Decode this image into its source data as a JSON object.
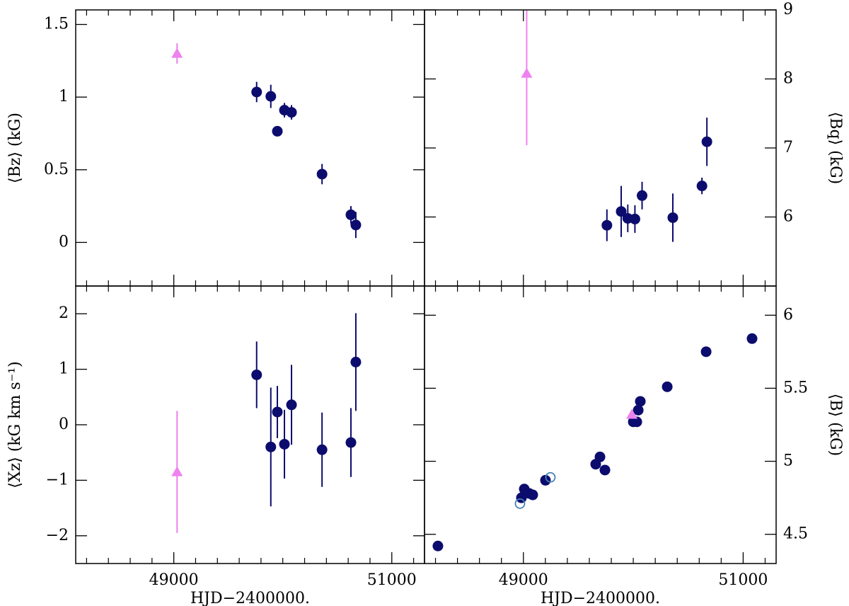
{
  "chart_data": [
    {
      "type": "scatter",
      "ylabel": "⟨Bz⟩ (kG)",
      "yaxis": "left",
      "xlim": [
        48100,
        51300
      ],
      "xticks": [
        49000,
        51000
      ],
      "xticks_minor": [
        48200,
        48400,
        48600,
        48800,
        49200,
        49400,
        49600,
        49800,
        50000,
        50200,
        50400,
        50600,
        50800,
        51200
      ],
      "ylim": [
        -0.3,
        1.6
      ],
      "yticks": [
        0,
        0.5,
        1,
        1.5
      ],
      "series": [
        {
          "color": "#0c0c6e",
          "marker": "circle",
          "x": [
            49760,
            49890,
            49950,
            50015,
            50080,
            50360,
            50625,
            50670
          ],
          "values": [
            1.035,
            1.005,
            0.765,
            0.91,
            0.895,
            0.47,
            0.19,
            0.12
          ],
          "errors": [
            0.07,
            0.08,
            0.02,
            0.05,
            0.05,
            0.07,
            0.06,
            0.09
          ]
        },
        {
          "color": "#ee82ee",
          "marker": "triangle",
          "x": [
            49030
          ],
          "values": [
            1.3
          ],
          "errors": [
            0.07
          ]
        }
      ]
    },
    {
      "type": "scatter",
      "ylabel": "⟨Bq⟩ (kG)",
      "yaxis": "right",
      "xlim": [
        48100,
        51300
      ],
      "xticks": [
        49000,
        51000
      ],
      "xticks_minor": [
        48200,
        48400,
        48600,
        48800,
        49200,
        49400,
        49600,
        49800,
        50000,
        50200,
        50400,
        50600,
        50800,
        51200
      ],
      "ylim": [
        5,
        9
      ],
      "yticks": [
        6,
        7,
        8,
        9
      ],
      "series": [
        {
          "color": "#0c0c6e",
          "marker": "circle",
          "x": [
            49760,
            49890,
            49950,
            50015,
            50080,
            50360,
            50625,
            50670
          ],
          "values": [
            5.88,
            6.08,
            5.98,
            5.97,
            6.31,
            5.99,
            6.45,
            7.09
          ],
          "errors": [
            0.23,
            0.37,
            0.2,
            0.2,
            0.2,
            0.35,
            0.12,
            0.35
          ]
        },
        {
          "color": "#ee82ee",
          "marker": "triangle",
          "x": [
            49030
          ],
          "values": [
            8.08
          ],
          "errors": [
            1.04
          ]
        }
      ]
    },
    {
      "type": "scatter",
      "ylabel": "⟨Xz⟩ (kG km s⁻¹)",
      "xlabel": "HJD−2400000.",
      "yaxis": "left",
      "xlim": [
        48100,
        51300
      ],
      "xticks": [
        49000,
        51000
      ],
      "xticks_minor": [
        48200,
        48400,
        48600,
        48800,
        49200,
        49400,
        49600,
        49800,
        50000,
        50200,
        50400,
        50600,
        50800,
        51200
      ],
      "ylim": [
        -2.5,
        2.5
      ],
      "yticks": [
        -2,
        -1,
        0,
        1,
        2
      ],
      "series": [
        {
          "color": "#0c0c6e",
          "marker": "circle",
          "x": [
            49760,
            49890,
            49950,
            50015,
            50080,
            50360,
            50625,
            50670
          ],
          "values": [
            0.9,
            -0.4,
            0.23,
            -0.35,
            0.36,
            -0.45,
            -0.32,
            1.13
          ],
          "errors": [
            0.6,
            1.07,
            0.47,
            0.62,
            0.72,
            0.67,
            0.62,
            0.88
          ]
        },
        {
          "color": "#ee82ee",
          "marker": "triangle",
          "x": [
            49030
          ],
          "values": [
            -0.85
          ],
          "errors": [
            1.1
          ]
        }
      ]
    },
    {
      "type": "scatter",
      "ylabel": "⟨B⟩ (kG)",
      "xlabel": "HJD−2400000.",
      "yaxis": "right",
      "xlim": [
        48100,
        51300
      ],
      "xticks": [
        49000,
        51000
      ],
      "xticks_minor": [
        48200,
        48400,
        48600,
        48800,
        49200,
        49400,
        49600,
        49800,
        50000,
        50200,
        50400,
        50600,
        50800,
        51200
      ],
      "ylim": [
        4.3,
        6.2
      ],
      "yticks": [
        4.5,
        5,
        5.5,
        6
      ],
      "series": [
        {
          "color": "#0c0c6e",
          "marker": "circle",
          "x": [
            48222,
            48982,
            49008,
            49053,
            49085,
            49201,
            49658,
            49697,
            49742,
            50000,
            50032,
            50045,
            50064,
            50309,
            50663,
            51081
          ],
          "values": [
            4.42,
            4.75,
            4.81,
            4.78,
            4.77,
            4.87,
            4.98,
            5.03,
            4.94,
            5.27,
            5.27,
            5.35,
            5.41,
            5.51,
            5.75,
            5.84
          ]
        },
        {
          "color": "#4682b4",
          "marker": "open-circle",
          "x": [
            48969,
            49246
          ],
          "values": [
            4.71,
            4.89
          ]
        },
        {
          "color": "#ee82ee",
          "marker": "triangle",
          "x": [
            49987
          ],
          "values": [
            5.32
          ]
        }
      ]
    }
  ]
}
